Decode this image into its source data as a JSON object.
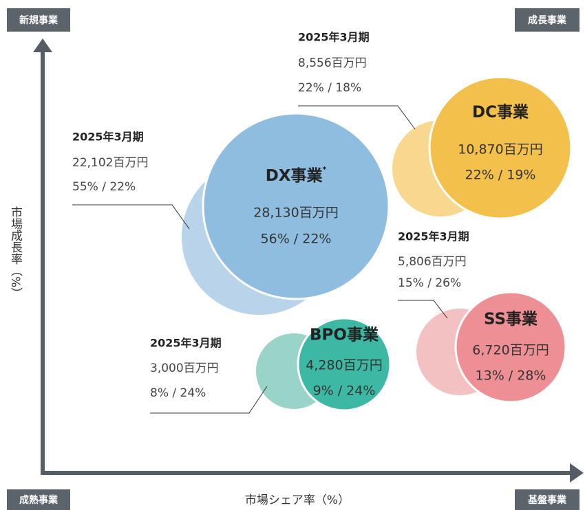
{
  "quadrants": {
    "top_left": "新規事業",
    "top_right": "成長事業",
    "bottom_left": "成熟事業",
    "bottom_right": "基盤事業"
  },
  "y_axis_label": "市場成長率（%）",
  "x_axis_label": "市場シェア率（%）",
  "segments": [
    {
      "name": "DX事業",
      "note": "*",
      "value": "28,130百万円",
      "rates": "56% / 22%",
      "prior": {
        "period": "2025年3月期",
        "value": "22,102百万円",
        "rates": "55% / 22%"
      }
    },
    {
      "name": "DC事業",
      "value": "10,870百万円",
      "rates": "22% / 19%",
      "prior": {
        "period": "2025年3月期",
        "value": "8,556百万円",
        "rates": "22% / 18%"
      }
    },
    {
      "name": "SS事業",
      "value": "6,720百万円",
      "rates": "13% / 28%",
      "prior": {
        "period": "2025年3月期",
        "value": "5,806百万円",
        "rates": "15% / 26%"
      }
    },
    {
      "name": "BPO事業",
      "value": "4,280百万円",
      "rates": "9% / 24%",
      "prior": {
        "period": "2025年3月期",
        "value": "3,000百万円",
        "rates": "8% / 24%"
      }
    }
  ]
}
